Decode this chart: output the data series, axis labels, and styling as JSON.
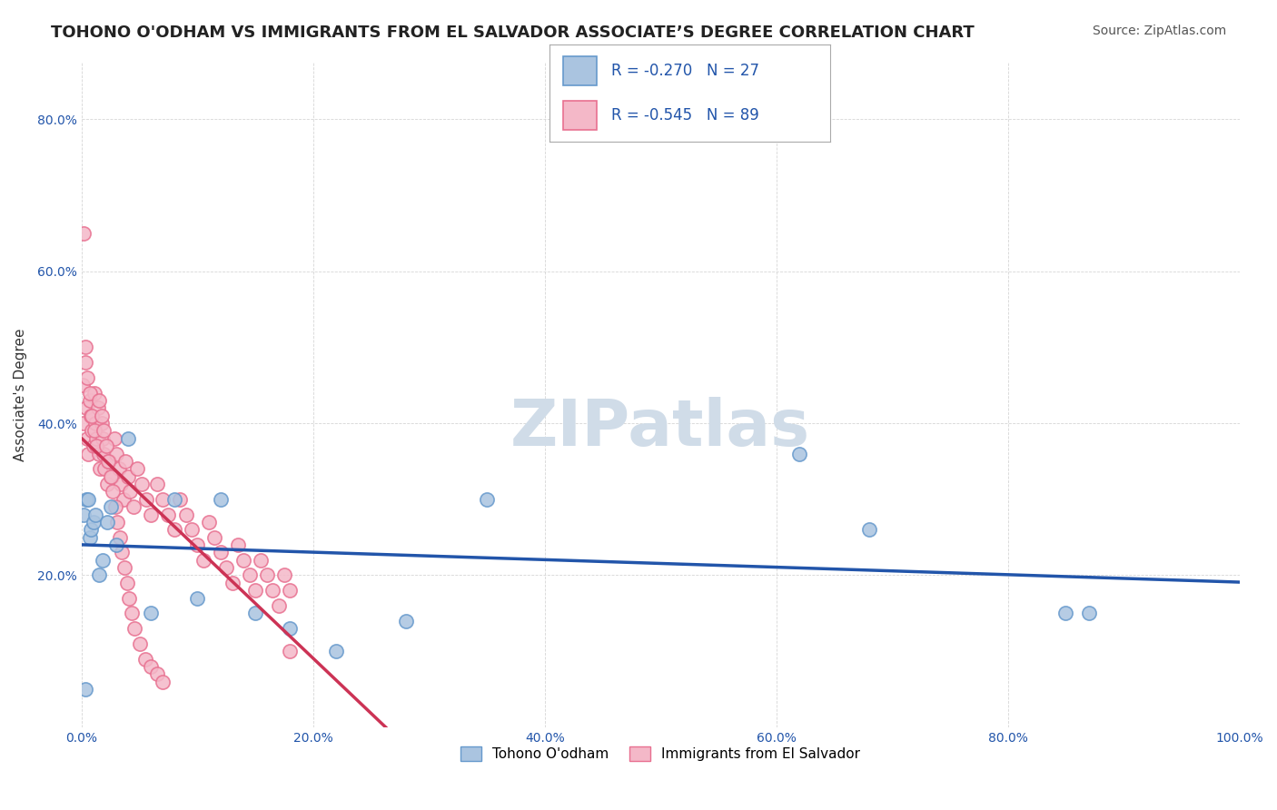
{
  "title": "TOHONO O'ODHAM VS IMMIGRANTS FROM EL SALVADOR ASSOCIATE’S DEGREE CORRELATION CHART",
  "source": "Source: ZipAtlas.com",
  "ylabel": "Associate's Degree",
  "xlabel": "",
  "xlim": [
    0.0,
    1.0
  ],
  "ylim": [
    0.0,
    0.875
  ],
  "yticks": [
    0.0,
    0.2,
    0.4,
    0.6,
    0.8
  ],
  "ytick_labels": [
    "",
    "20.0%",
    "40.0%",
    "60.0%",
    "80.0%"
  ],
  "xticks": [
    0.0,
    0.2,
    0.4,
    0.6,
    0.8,
    1.0
  ],
  "xtick_labels": [
    "0.0%",
    "20.0%",
    "40.0%",
    "60.0%",
    "80.0%",
    "100.0%"
  ],
  "series": [
    {
      "name": "Tohono O'odham",
      "color": "#aac4e0",
      "edge_color": "#6699cc",
      "R": -0.27,
      "N": 27,
      "line_color": "#2255aa",
      "x": [
        0.002,
        0.003,
        0.004,
        0.006,
        0.007,
        0.008,
        0.01,
        0.012,
        0.015,
        0.018,
        0.022,
        0.025,
        0.03,
        0.04,
        0.06,
        0.08,
        0.1,
        0.12,
        0.15,
        0.18,
        0.22,
        0.28,
        0.35,
        0.62,
        0.68,
        0.85,
        0.87
      ],
      "y": [
        0.28,
        0.05,
        0.3,
        0.3,
        0.25,
        0.26,
        0.27,
        0.28,
        0.2,
        0.22,
        0.27,
        0.29,
        0.24,
        0.38,
        0.15,
        0.3,
        0.17,
        0.3,
        0.15,
        0.13,
        0.1,
        0.14,
        0.3,
        0.36,
        0.26,
        0.15,
        0.15
      ]
    },
    {
      "name": "Immigrants from El Salvador",
      "color": "#f4b8c8",
      "edge_color": "#e87090",
      "R": -0.545,
      "N": 89,
      "line_color": "#cc3355",
      "x": [
        0.001,
        0.002,
        0.003,
        0.004,
        0.005,
        0.006,
        0.007,
        0.008,
        0.009,
        0.01,
        0.011,
        0.012,
        0.013,
        0.014,
        0.015,
        0.016,
        0.017,
        0.018,
        0.019,
        0.02,
        0.022,
        0.024,
        0.026,
        0.028,
        0.03,
        0.032,
        0.034,
        0.036,
        0.038,
        0.04,
        0.042,
        0.045,
        0.048,
        0.052,
        0.056,
        0.06,
        0.065,
        0.07,
        0.075,
        0.08,
        0.085,
        0.09,
        0.095,
        0.1,
        0.105,
        0.11,
        0.115,
        0.12,
        0.125,
        0.13,
        0.135,
        0.14,
        0.145,
        0.15,
        0.155,
        0.16,
        0.165,
        0.17,
        0.175,
        0.18,
        0.002,
        0.003,
        0.005,
        0.007,
        0.009,
        0.011,
        0.013,
        0.015,
        0.017,
        0.019,
        0.021,
        0.023,
        0.025,
        0.027,
        0.029,
        0.031,
        0.033,
        0.035,
        0.037,
        0.039,
        0.041,
        0.043,
        0.046,
        0.05,
        0.055,
        0.06,
        0.065,
        0.07,
        0.18
      ],
      "y": [
        0.45,
        0.4,
        0.5,
        0.42,
        0.38,
        0.36,
        0.43,
        0.41,
        0.39,
        0.37,
        0.44,
        0.4,
        0.38,
        0.42,
        0.36,
        0.34,
        0.4,
        0.38,
        0.36,
        0.34,
        0.32,
        0.35,
        0.33,
        0.38,
        0.36,
        0.34,
        0.32,
        0.3,
        0.35,
        0.33,
        0.31,
        0.29,
        0.34,
        0.32,
        0.3,
        0.28,
        0.32,
        0.3,
        0.28,
        0.26,
        0.3,
        0.28,
        0.26,
        0.24,
        0.22,
        0.27,
        0.25,
        0.23,
        0.21,
        0.19,
        0.24,
        0.22,
        0.2,
        0.18,
        0.22,
        0.2,
        0.18,
        0.16,
        0.2,
        0.18,
        0.65,
        0.48,
        0.46,
        0.44,
        0.41,
        0.39,
        0.37,
        0.43,
        0.41,
        0.39,
        0.37,
        0.35,
        0.33,
        0.31,
        0.29,
        0.27,
        0.25,
        0.23,
        0.21,
        0.19,
        0.17,
        0.15,
        0.13,
        0.11,
        0.09,
        0.08,
        0.07,
        0.06,
        0.1
      ]
    }
  ],
  "watermark": "ZIPatlas",
  "watermark_color": "#d0dce8",
  "background_color": "#ffffff",
  "grid_color": "#cccccc",
  "title_fontsize": 13,
  "axis_label_fontsize": 11,
  "tick_fontsize": 10,
  "legend_fontsize": 12,
  "source_fontsize": 10
}
